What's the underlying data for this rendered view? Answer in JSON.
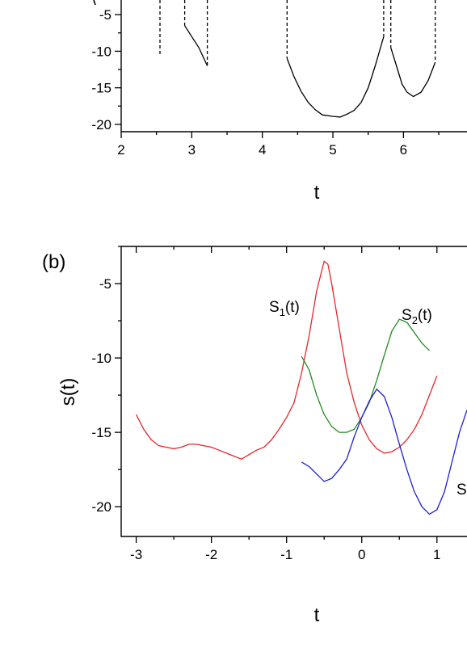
{
  "chart_data": [
    {
      "type": "line",
      "panel_label": "",
      "xlabel": "t",
      "ylabel": "",
      "xlim": [
        2,
        6.9
      ],
      "ylim": [
        -21,
        -3
      ],
      "x_ticks": [
        "2",
        "3",
        "4",
        "5",
        "6"
      ],
      "y_ticks": [
        "-5",
        "-10",
        "-15",
        "-20"
      ],
      "grid": false,
      "segments": [
        {
          "style": "solid",
          "points": [
            [
              2.9,
              -6.5
            ],
            [
              3.0,
              -8.0
            ],
            [
              3.1,
              -9.5
            ],
            [
              3.22,
              -12.0
            ]
          ]
        },
        {
          "style": "solid",
          "points": [
            [
              4.35,
              -11.0
            ],
            [
              4.45,
              -13.5
            ],
            [
              4.55,
              -15.5
            ],
            [
              4.65,
              -17.0
            ],
            [
              4.75,
              -18.0
            ],
            [
              4.85,
              -18.7
            ],
            [
              5.0,
              -18.9
            ],
            [
              5.1,
              -19.0
            ],
            [
              5.2,
              -18.6
            ],
            [
              5.3,
              -18.1
            ],
            [
              5.4,
              -17.0
            ],
            [
              5.5,
              -15.0
            ],
            [
              5.6,
              -12.0
            ],
            [
              5.72,
              -8.0
            ]
          ]
        },
        {
          "style": "solid",
          "points": [
            [
              5.82,
              -9.5
            ],
            [
              5.9,
              -12.0
            ],
            [
              5.98,
              -14.5
            ],
            [
              6.05,
              -15.6
            ],
            [
              6.14,
              -16.2
            ],
            [
              6.25,
              -15.6
            ],
            [
              6.35,
              -14.0
            ],
            [
              6.45,
              -11.5
            ]
          ]
        },
        {
          "style": "dashed",
          "points": [
            [
              2.55,
              -3
            ],
            [
              2.55,
              -10.4
            ]
          ]
        },
        {
          "style": "dashed",
          "points": [
            [
              2.9,
              -3
            ],
            [
              2.9,
              -6.5
            ]
          ]
        },
        {
          "style": "dashed",
          "points": [
            [
              3.22,
              -3
            ],
            [
              3.22,
              -12.0
            ]
          ]
        },
        {
          "style": "dashed",
          "points": [
            [
              4.35,
              -3
            ],
            [
              4.35,
              -11.0
            ]
          ]
        },
        {
          "style": "dashed",
          "points": [
            [
              5.72,
              -3
            ],
            [
              5.72,
              -8.0
            ]
          ]
        },
        {
          "style": "dashed",
          "points": [
            [
              5.82,
              -3
            ],
            [
              5.82,
              -9.5
            ]
          ]
        },
        {
          "style": "dashed",
          "points": [
            [
              6.45,
              -3
            ],
            [
              6.45,
              -11.5
            ]
          ]
        }
      ]
    },
    {
      "type": "line",
      "panel_label": "(b)",
      "xlabel": "t",
      "ylabel": "s(t)",
      "xlim": [
        -3.2,
        1.4
      ],
      "ylim": [
        -22,
        -2.5
      ],
      "x_ticks": [
        "-3",
        "-2",
        "-1",
        "0",
        "1"
      ],
      "y_ticks": [
        "-5",
        "-10",
        "-15",
        "-20"
      ],
      "grid": false,
      "series": [
        {
          "name_main": "S",
          "name_sub": "1",
          "name_tail": "(t)",
          "color": "#e8262a",
          "points": [
            [
              -3.0,
              -13.8
            ],
            [
              -2.9,
              -14.8
            ],
            [
              -2.8,
              -15.5
            ],
            [
              -2.7,
              -15.9
            ],
            [
              -2.6,
              -16.0
            ],
            [
              -2.5,
              -16.1
            ],
            [
              -2.4,
              -16.0
            ],
            [
              -2.3,
              -15.8
            ],
            [
              -2.2,
              -15.8
            ],
            [
              -2.1,
              -15.9
            ],
            [
              -2.0,
              -16.0
            ],
            [
              -1.9,
              -16.2
            ],
            [
              -1.8,
              -16.4
            ],
            [
              -1.7,
              -16.6
            ],
            [
              -1.6,
              -16.8
            ],
            [
              -1.5,
              -16.5
            ],
            [
              -1.4,
              -16.2
            ],
            [
              -1.3,
              -16.0
            ],
            [
              -1.2,
              -15.5
            ],
            [
              -1.1,
              -14.8
            ],
            [
              -1.0,
              -14.0
            ],
            [
              -0.9,
              -13.0
            ],
            [
              -0.8,
              -11.0
            ],
            [
              -0.7,
              -8.5
            ],
            [
              -0.6,
              -5.5
            ],
            [
              -0.5,
              -3.5
            ],
            [
              -0.45,
              -3.7
            ],
            [
              -0.4,
              -5.0
            ],
            [
              -0.3,
              -8.0
            ],
            [
              -0.2,
              -11.0
            ],
            [
              -0.1,
              -13.0
            ],
            [
              0.0,
              -14.5
            ],
            [
              0.1,
              -15.5
            ],
            [
              0.2,
              -16.1
            ],
            [
              0.3,
              -16.4
            ],
            [
              0.4,
              -16.3
            ],
            [
              0.5,
              -16.0
            ],
            [
              0.6,
              -15.5
            ],
            [
              0.7,
              -14.8
            ],
            [
              0.8,
              -13.8
            ],
            [
              0.9,
              -12.5
            ],
            [
              1.0,
              -11.2
            ]
          ]
        },
        {
          "name_main": "S",
          "name_sub": "2",
          "name_tail": "(t)",
          "color": "#228b22",
          "points": [
            [
              -0.8,
              -9.9
            ],
            [
              -0.7,
              -10.8
            ],
            [
              -0.6,
              -12.5
            ],
            [
              -0.5,
              -13.8
            ],
            [
              -0.4,
              -14.6
            ],
            [
              -0.3,
              -15.0
            ],
            [
              -0.2,
              -15.0
            ],
            [
              -0.1,
              -14.8
            ],
            [
              0.0,
              -14.0
            ],
            [
              0.1,
              -13.0
            ],
            [
              0.2,
              -11.5
            ],
            [
              0.3,
              -9.8
            ],
            [
              0.4,
              -8.2
            ],
            [
              0.5,
              -7.4
            ],
            [
              0.6,
              -7.6
            ],
            [
              0.7,
              -8.3
            ],
            [
              0.8,
              -9.0
            ],
            [
              0.9,
              -9.5
            ]
          ]
        },
        {
          "name_main": "S",
          "name_sub": "",
          "name_tail": "",
          "color": "#1f1fd6",
          "points": [
            [
              -0.8,
              -17.0
            ],
            [
              -0.7,
              -17.3
            ],
            [
              -0.6,
              -17.8
            ],
            [
              -0.5,
              -18.3
            ],
            [
              -0.4,
              -18.1
            ],
            [
              -0.3,
              -17.5
            ],
            [
              -0.2,
              -16.8
            ],
            [
              -0.1,
              -15.3
            ],
            [
              0.0,
              -14.0
            ],
            [
              0.1,
              -12.9
            ],
            [
              0.2,
              -12.1
            ],
            [
              0.3,
              -12.6
            ],
            [
              0.4,
              -14.0
            ],
            [
              0.5,
              -15.8
            ],
            [
              0.6,
              -17.5
            ],
            [
              0.7,
              -19.0
            ],
            [
              0.8,
              -20.0
            ],
            [
              0.9,
              -20.5
            ],
            [
              1.0,
              -20.2
            ],
            [
              1.1,
              -19.0
            ],
            [
              1.2,
              -17.0
            ],
            [
              1.3,
              -15.0
            ],
            [
              1.4,
              -13.5
            ]
          ]
        }
      ]
    }
  ]
}
